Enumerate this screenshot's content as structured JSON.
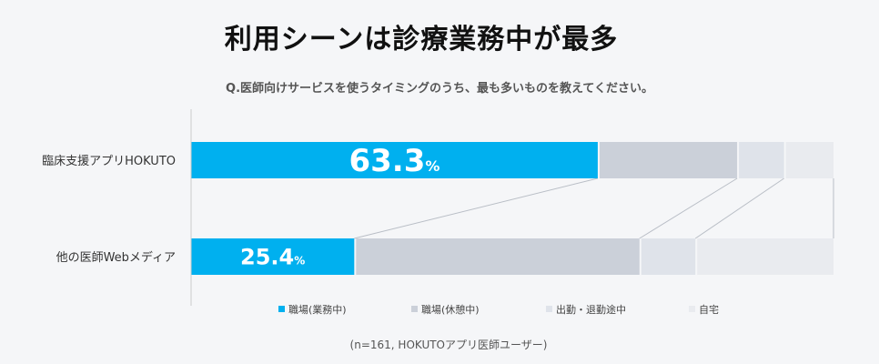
{
  "title": "利用シーンは診療業務中が最多",
  "question": "Q.医師向けサービスを使うタイミングのうち、最も多いものを教えてください。",
  "note": "(n=161, HOKUTOアプリ医師ユーザー)",
  "colors": {
    "work_duty": "#00b0ef",
    "work_break": "#cbd0d9",
    "commute": "#dfe3ea",
    "home": "#e9ebef",
    "axis": "#cccccc",
    "connector": "#b9bec6"
  },
  "chart_data": {
    "type": "bar",
    "orientation": "horizontal",
    "stacked": true,
    "percent": true,
    "categories": [
      "臨床支援アプリHOKUTO",
      "他の医師Webメディア"
    ],
    "series": [
      {
        "name": "職場(業務中)",
        "values": [
          63.3,
          25.4
        ]
      },
      {
        "name": "職場(休憩中)",
        "values": [
          21.7,
          44.4
        ]
      },
      {
        "name": "出勤・退勤途中",
        "values": [
          7.3,
          8.7
        ]
      },
      {
        "name": "自宅",
        "values": [
          7.7,
          21.5
        ]
      }
    ],
    "data_labels": [
      {
        "series": 0,
        "category": 0,
        "number": "63.3",
        "unit": "%"
      },
      {
        "series": 0,
        "category": 1,
        "number": "25.4",
        "unit": "%"
      }
    ],
    "xlim": [
      0,
      100
    ],
    "legend_position": "bottom",
    "grid": false
  }
}
